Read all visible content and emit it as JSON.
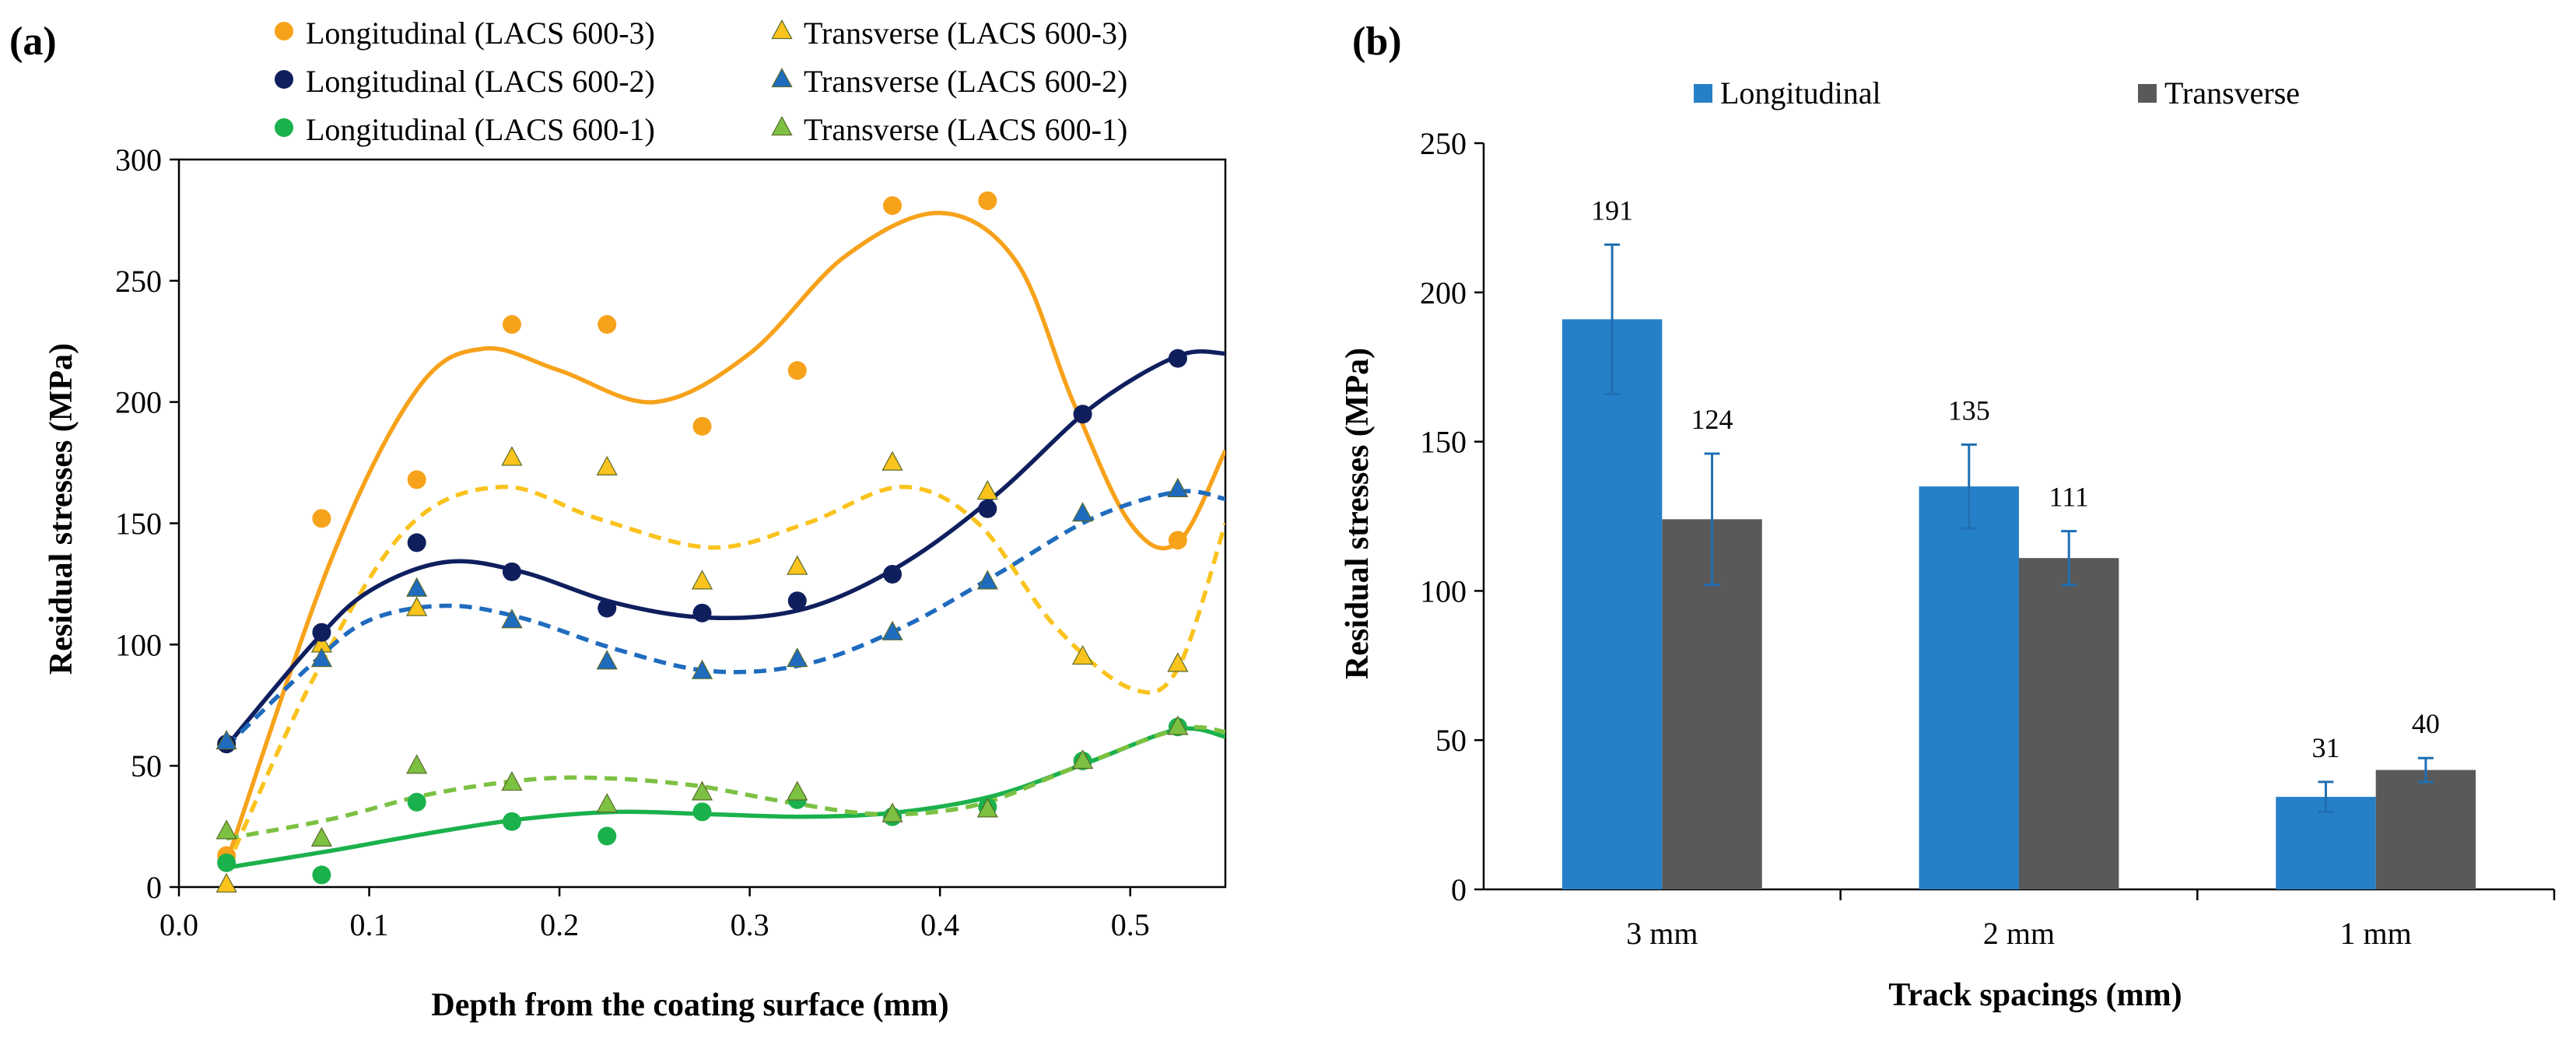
{
  "chart_data": [
    {
      "panel_label": "(a)",
      "type": "scatter",
      "xlabel": "Depth from the coating surface (mm)",
      "ylabel": "Residual stresses (MPa)",
      "xlim": [
        0.0,
        0.55
      ],
      "ylim": [
        0,
        300
      ],
      "xticks": [
        0.0,
        0.1,
        0.2,
        0.3,
        0.4,
        0.5
      ],
      "xtick_labels": [
        "0.0",
        "0.1",
        "0.2",
        "0.3",
        "0.4",
        "0.5"
      ],
      "yticks": [
        0,
        50,
        100,
        150,
        200,
        250,
        300
      ],
      "ytick_labels": [
        "0",
        "50",
        "100",
        "150",
        "200",
        "250",
        "300"
      ],
      "grid": false,
      "legend_position": "top",
      "series": [
        {
          "name": "Longitudinal (LACS 600-3)",
          "marker": "circle",
          "color": "#F7A21B",
          "line": "solid",
          "x": [
            0.025,
            0.075,
            0.125,
            0.175,
            0.225,
            0.275,
            0.325,
            0.375,
            0.425,
            0.475,
            0.525
          ],
          "y": [
            13,
            152,
            168,
            232,
            232,
            190,
            213,
            281,
            283,
            195,
            143
          ],
          "fit_x": [
            0.025,
            0.08,
            0.125,
            0.16,
            0.2,
            0.25,
            0.3,
            0.35,
            0.4,
            0.44,
            0.47,
            0.5,
            0.525,
            0.55
          ],
          "fit_y": [
            10,
            135,
            205,
            222,
            213,
            200,
            220,
            260,
            278,
            258,
            200,
            150,
            142,
            180
          ]
        },
        {
          "name": "Transverse (LACS 600-3)",
          "marker": "triangle",
          "color": "#FAC31D",
          "line": "dashed",
          "x": [
            0.025,
            0.075,
            0.125,
            0.175,
            0.225,
            0.275,
            0.325,
            0.375,
            0.425,
            0.475,
            0.525
          ],
          "y": [
            1,
            100,
            115,
            177,
            173,
            126,
            132,
            175,
            163,
            95,
            92
          ],
          "fit_x": [
            0.025,
            0.07,
            0.12,
            0.17,
            0.22,
            0.28,
            0.33,
            0.38,
            0.42,
            0.46,
            0.5,
            0.525,
            0.55
          ],
          "fit_y": [
            8,
            85,
            148,
            165,
            152,
            140,
            150,
            165,
            150,
            108,
            82,
            90,
            150
          ]
        },
        {
          "name": "Longitudinal (LACS 600-2)",
          "marker": "circle",
          "color": "#0F1F5E",
          "line": "solid",
          "x": [
            0.025,
            0.075,
            0.125,
            0.175,
            0.225,
            0.275,
            0.325,
            0.375,
            0.425,
            0.475,
            0.525
          ],
          "y": [
            59,
            105,
            142,
            130,
            115,
            113,
            118,
            129,
            156,
            195,
            218
          ],
          "fit_x": [
            0.025,
            0.07,
            0.1,
            0.14,
            0.18,
            0.23,
            0.28,
            0.33,
            0.38,
            0.43,
            0.48,
            0.525,
            0.55
          ],
          "fit_y": [
            58,
            100,
            122,
            134,
            130,
            117,
            111,
            115,
            133,
            162,
            198,
            219,
            220
          ]
        },
        {
          "name": "Transverse (LACS 600-2)",
          "marker": "triangle",
          "color": "#1F6BBE",
          "line": "dashed",
          "x": [
            0.025,
            0.075,
            0.125,
            0.175,
            0.225,
            0.275,
            0.325,
            0.375,
            0.425,
            0.475,
            0.525
          ],
          "y": [
            60,
            94,
            123,
            110,
            93,
            89,
            94,
            105,
            126,
            154,
            164
          ],
          "fit_x": [
            0.025,
            0.07,
            0.1,
            0.14,
            0.18,
            0.23,
            0.28,
            0.33,
            0.38,
            0.43,
            0.48,
            0.525,
            0.55
          ],
          "fit_y": [
            58,
            92,
            110,
            116,
            111,
            98,
            89,
            92,
            107,
            129,
            152,
            163,
            160
          ]
        },
        {
          "name": "Longitudinal (LACS 600-1)",
          "marker": "circle",
          "color": "#1BB14C",
          "line": "solid",
          "x": [
            0.025,
            0.075,
            0.125,
            0.175,
            0.225,
            0.275,
            0.325,
            0.375,
            0.425,
            0.475,
            0.525
          ],
          "y": [
            10,
            5,
            35,
            27,
            21,
            31,
            36,
            29,
            33,
            52,
            66
          ],
          "fit_x": [
            0.025,
            0.08,
            0.13,
            0.18,
            0.23,
            0.28,
            0.33,
            0.38,
            0.43,
            0.48,
            0.525,
            0.55
          ],
          "fit_y": [
            8,
            15,
            22,
            28,
            31,
            30,
            29,
            31,
            38,
            52,
            65,
            62
          ]
        },
        {
          "name": "Transverse (LACS 600-1)",
          "marker": "triangle",
          "color": "#7CC142",
          "line": "dashed",
          "x": [
            0.025,
            0.075,
            0.125,
            0.175,
            0.225,
            0.275,
            0.325,
            0.375,
            0.425,
            0.475,
            0.525
          ],
          "y": [
            23,
            20,
            50,
            43,
            34,
            39,
            39,
            30,
            32,
            52,
            66
          ],
          "fit_x": [
            0.025,
            0.08,
            0.13,
            0.18,
            0.22,
            0.27,
            0.32,
            0.37,
            0.42,
            0.47,
            0.525,
            0.55
          ],
          "fit_y": [
            20,
            28,
            38,
            44,
            45,
            42,
            35,
            30,
            34,
            49,
            65,
            64
          ]
        }
      ]
    },
    {
      "panel_label": "(b)",
      "type": "bar",
      "xlabel": "Track spacings (mm)",
      "ylabel": "Residual stresses (MPa)",
      "categories": [
        "3 mm",
        "2 mm",
        "1 mm"
      ],
      "ylim": [
        0,
        250
      ],
      "yticks": [
        0,
        50,
        100,
        150,
        200,
        250
      ],
      "ytick_labels": [
        "0",
        "50",
        "100",
        "150",
        "200",
        "250"
      ],
      "grid": false,
      "legend_position": "top",
      "series": [
        {
          "name": "Longitudinal",
          "color": "#2680C8",
          "values": [
            191,
            135,
            31
          ],
          "errors": [
            25,
            14,
            5
          ],
          "labels": [
            "191",
            "135",
            "31"
          ]
        },
        {
          "name": "Transverse",
          "color": "#595959",
          "values": [
            124,
            111,
            40
          ],
          "errors": [
            22,
            9,
            4
          ],
          "labels": [
            "124",
            "111",
            "40"
          ]
        }
      ]
    }
  ]
}
